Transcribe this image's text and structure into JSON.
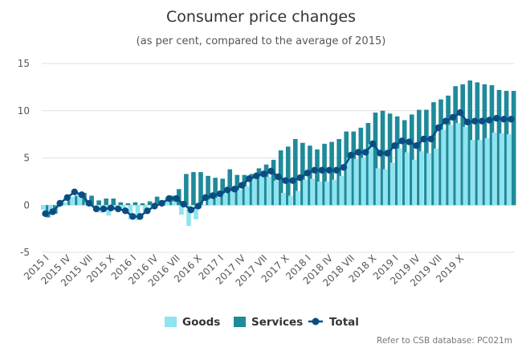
{
  "chart_data": {
    "type": "bar",
    "title": "Consumer price changes",
    "subtitle": "(as per cent, compared to the average of 2015)",
    "xlabel": "",
    "ylabel": "",
    "ylim": [
      -5,
      15
    ],
    "yticks": [
      -5,
      0,
      5,
      10,
      15
    ],
    "grid": true,
    "legend_position": "bottom-center",
    "x_tick_labels": [
      "2015 I",
      "2015 IV",
      "2015 VII",
      "2015 X",
      "2016 I",
      "2016 IV",
      "2016 VII",
      "2016 X",
      "2017 I",
      "2017 IV",
      "2017 VII",
      "2017 X",
      "2018 I",
      "2018 IV",
      "2018 VII",
      "2018 X",
      "2019 I",
      "2019 IV",
      "2019 VII",
      "2019 X"
    ],
    "series": [
      {
        "name": "Goods",
        "kind": "bar",
        "color": "#8ee4f0",
        "values": [
          -0.5,
          -0.7,
          -0.3,
          0.3,
          0.9,
          1.2,
          0.3,
          -0.3,
          -0.8,
          -1.1,
          -0.5,
          -0.6,
          -1.5,
          -1.6,
          -0.9,
          -0.2,
          0.2,
          0.8,
          0.4,
          -1.0,
          -2.2,
          -1.5,
          0.0,
          0.6,
          0.8,
          1.2,
          1.5,
          1.6,
          2.0,
          2.8,
          3.2,
          3.0,
          2.6,
          1.3,
          1.0,
          1.5,
          2.7,
          2.8,
          2.5,
          2.5,
          2.7,
          3.1,
          5.0,
          4.9,
          5.0,
          6.5,
          3.9,
          3.8,
          4.5,
          6.0,
          5.6,
          4.8,
          5.7,
          5.5,
          6.0,
          8.0,
          8.5,
          8.7,
          8.3,
          6.9,
          6.9,
          7.1,
          7.7,
          7.6,
          7.5
        ]
      },
      {
        "name": "Services",
        "kind": "bar",
        "color": "#1f8a99",
        "values": [
          -1.3,
          -0.9,
          0.2,
          0.5,
          1.0,
          1.3,
          1.0,
          0.5,
          0.7,
          0.7,
          0.3,
          0.2,
          0.3,
          0.2,
          0.4,
          0.9,
          0.5,
          1.0,
          1.7,
          3.3,
          3.5,
          3.5,
          3.1,
          2.9,
          2.8,
          3.8,
          3.2,
          3.2,
          3.3,
          3.9,
          4.3,
          4.8,
          5.8,
          6.2,
          7.0,
          6.6,
          6.3,
          5.9,
          6.5,
          6.7,
          7.0,
          7.8,
          7.8,
          8.2,
          8.7,
          9.8,
          10.0,
          9.7,
          9.4,
          9.0,
          9.6,
          10.1,
          10.1,
          10.9,
          11.2,
          11.6,
          12.6,
          12.8,
          13.2,
          13.0,
          12.8,
          12.7,
          12.2,
          12.1,
          12.1
        ]
      },
      {
        "name": "Total",
        "kind": "line",
        "color": "#0a4d82",
        "values": [
          -0.9,
          -0.7,
          0.2,
          0.8,
          1.4,
          1.1,
          0.2,
          -0.4,
          -0.4,
          -0.3,
          -0.4,
          -0.6,
          -1.2,
          -1.2,
          -0.6,
          -0.1,
          0.2,
          0.7,
          0.7,
          0.1,
          -0.5,
          -0.1,
          0.8,
          1.0,
          1.2,
          1.6,
          1.7,
          2.1,
          2.8,
          3.1,
          3.3,
          3.6,
          3.0,
          2.6,
          2.6,
          2.9,
          3.4,
          3.7,
          3.7,
          3.7,
          3.7,
          4.0,
          5.3,
          5.6,
          5.6,
          6.5,
          5.5,
          5.5,
          6.3,
          6.8,
          6.7,
          6.3,
          7.0,
          7.0,
          8.2,
          8.9,
          9.3,
          9.8,
          8.8,
          8.9,
          8.9,
          9.0,
          9.2,
          9.1,
          9.1
        ]
      }
    ]
  },
  "legend": {
    "goods": "Goods",
    "services": "Services",
    "total": "Total"
  },
  "credit": "Refer to CSB database: PC021m"
}
